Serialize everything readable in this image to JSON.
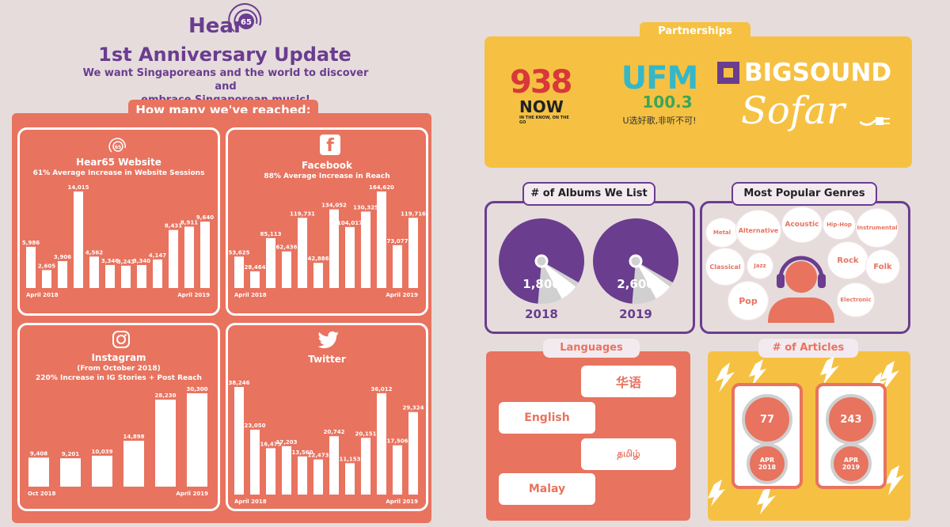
{
  "header": {
    "brand": "Hear",
    "brand_num": "65",
    "title": "1st Anniversary Update",
    "tagline_line1": "We want Singaporeans and the world to discover and",
    "tagline_line2": "embrace Singaporean music!"
  },
  "reach": {
    "label": "How many we've reached:"
  },
  "partnerships": {
    "label": "Partnerships",
    "num938": "938",
    "now": "NOW",
    "now_tagline": "IN THE KNOW, ON THE GO",
    "ufm": "UFM",
    "ufm_freq": "100.3",
    "ufm_tagline": "U选好歌,非听不可!",
    "bigsound": "BIGSOUND",
    "sofar": "Sofar"
  },
  "albums": {
    "label": "# of Albums We List",
    "items": [
      {
        "value": "1,800",
        "year": "2018",
        "fill_fraction": 0.82
      },
      {
        "value": "2,600",
        "year": "2019",
        "fill_fraction": 0.82
      }
    ]
  },
  "genres": {
    "label": "Most Popular Genres",
    "items": [
      "Metal",
      "Alternative",
      "Acoustic",
      "Hip-Hop",
      "Instrumental",
      "Classical",
      "Jazz",
      "Rock",
      "Folk",
      "Pop",
      "Electronic"
    ]
  },
  "languages": {
    "label": "Languages",
    "items": [
      "华语",
      "English",
      "தமிழ்",
      "Malay"
    ]
  },
  "articles": {
    "label": "# of Articles",
    "items": [
      {
        "value": "77",
        "month": "APR",
        "year": "2018"
      },
      {
        "value": "243",
        "month": "APR",
        "year": "2019"
      }
    ]
  },
  "chart_data": [
    {
      "type": "bar",
      "title": "Hear65 Website",
      "subtitle": "61% Average Increase in Website Sessions",
      "values": [
        5986,
        2605,
        3906,
        14015,
        4562,
        3346,
        3243,
        3340,
        4147,
        8431,
        8911,
        9640
      ],
      "labels": [
        "5,986",
        "2,605",
        "3,906",
        "14,015",
        "4,562",
        "3,346",
        "3,243",
        "3,340",
        "4,147",
        "8,431",
        "8,911",
        "9,640"
      ],
      "x_start": "April 2018",
      "x_end": "April 2019",
      "ylim": [
        0,
        14015
      ]
    },
    {
      "type": "bar",
      "title": "Facebook",
      "subtitle": "88% Average Increase in Reach",
      "values": [
        53625,
        28464,
        85113,
        62436,
        119731,
        42886,
        134052,
        104017,
        130325,
        164620,
        73077,
        119716
      ],
      "labels": [
        "53,625",
        "28,464",
        "85,113",
        "62,436",
        "119,731",
        "42,886",
        "134,052",
        "104,017",
        "130,325",
        "164,620",
        "73,077",
        "119,716"
      ],
      "x_start": "April 2018",
      "x_end": "April 2019",
      "ylim": [
        0,
        164620
      ]
    },
    {
      "type": "bar",
      "title": "Instagram",
      "subtitle": "(From October 2018)",
      "subtitle2": "220% Increase in IG Stories + Post Reach",
      "values": [
        9408,
        9201,
        10039,
        14898,
        28230,
        30300
      ],
      "labels": [
        "9,408",
        "9,201",
        "10,039",
        "14,898",
        "28,230",
        "30,300"
      ],
      "x_start": "Oct 2018",
      "x_end": "April 2019",
      "ylim": [
        0,
        30300
      ]
    },
    {
      "type": "bar",
      "title": "Twitter",
      "values": [
        38246,
        23050,
        16475,
        17203,
        13560,
        12473,
        20742,
        11153,
        20151,
        36012,
        17506,
        29324
      ],
      "labels": [
        "38,246",
        "23,050",
        "16,475",
        "17,203",
        "13,560",
        "12,473",
        "20,742",
        "11,153",
        "20,151",
        "36,012",
        "17,506",
        "29,324"
      ],
      "x_start": "April 2018",
      "x_end": "April 2019",
      "ylim": [
        0,
        38246
      ]
    }
  ]
}
